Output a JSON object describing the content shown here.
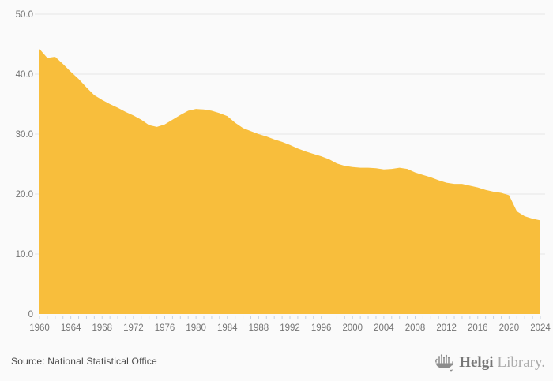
{
  "chart_data": {
    "type": "area",
    "title": "",
    "xlabel": "",
    "ylabel": "",
    "xlim": [
      1960,
      2024
    ],
    "ylim": [
      0,
      50
    ],
    "grid": "horizontal",
    "legend": "none",
    "fill_color": "#f8be3c",
    "x_label_step": 4,
    "y_ticks": [
      {
        "v": 50,
        "label": "50.0"
      },
      {
        "v": 40,
        "label": "40.0"
      },
      {
        "v": 30,
        "label": "30.0"
      },
      {
        "v": 20,
        "label": "20.0"
      },
      {
        "v": 10,
        "label": "10.0"
      },
      {
        "v": 0,
        "label": "0"
      }
    ],
    "x": [
      1960,
      1961,
      1962,
      1963,
      1964,
      1965,
      1966,
      1967,
      1968,
      1969,
      1970,
      1971,
      1972,
      1973,
      1974,
      1975,
      1976,
      1977,
      1978,
      1979,
      1980,
      1981,
      1982,
      1983,
      1984,
      1985,
      1986,
      1987,
      1988,
      1989,
      1990,
      1991,
      1992,
      1993,
      1994,
      1995,
      1996,
      1997,
      1998,
      1999,
      2000,
      2001,
      2002,
      2003,
      2004,
      2005,
      2006,
      2007,
      2008,
      2009,
      2010,
      2011,
      2012,
      2013,
      2014,
      2015,
      2016,
      2017,
      2018,
      2019,
      2020,
      2021,
      2022,
      2023,
      2024
    ],
    "values": [
      44.2,
      42.7,
      42.9,
      41.7,
      40.4,
      39.2,
      37.8,
      36.5,
      35.7,
      35.0,
      34.4,
      33.7,
      33.1,
      32.4,
      31.5,
      31.2,
      31.6,
      32.4,
      33.2,
      33.9,
      34.2,
      34.1,
      33.9,
      33.5,
      33.0,
      31.9,
      31.0,
      30.5,
      30.0,
      29.6,
      29.1,
      28.7,
      28.2,
      27.6,
      27.1,
      26.7,
      26.3,
      25.8,
      25.1,
      24.7,
      24.5,
      24.4,
      24.4,
      24.3,
      24.1,
      24.2,
      24.4,
      24.2,
      23.6,
      23.2,
      22.8,
      22.3,
      21.9,
      21.7,
      21.7,
      21.4,
      21.1,
      20.7,
      20.4,
      20.2,
      19.8,
      17.1,
      16.3,
      15.9,
      15.6
    ]
  },
  "colors": {
    "background": "#fafafa",
    "gridline": "#e5e5e5",
    "tick": "#c8d2e0",
    "axis_text": "#737373",
    "area_fill": "#f8be3c"
  },
  "footer": {
    "source": "Source: National Statistical Office",
    "logo_primary": "Helgi",
    "logo_secondary": "Library."
  }
}
